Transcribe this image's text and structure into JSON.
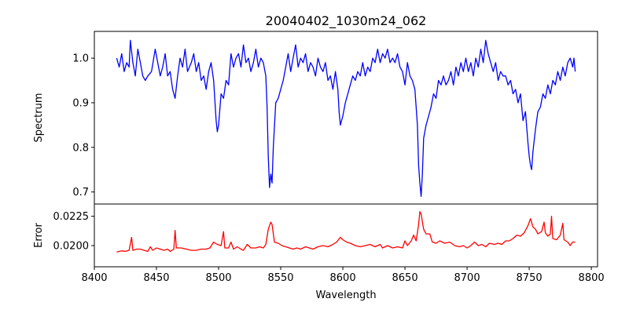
{
  "chart_data": [
    {
      "type": "line",
      "title": "20040402_1030m24_062",
      "xlabel": "",
      "ylabel": "Spectrum",
      "xlim": [
        8400,
        8805
      ],
      "ylim": [
        0.673,
        1.06
      ],
      "yticks": [
        0.7,
        0.8,
        0.9,
        1.0
      ],
      "ytick_labels": [
        "0.7",
        "0.8",
        "0.9",
        "1.0"
      ],
      "grid": false,
      "series": [
        {
          "name": "Spectrum",
          "color": "#0000ff",
          "x": [
            8418,
            8420,
            8422,
            8424,
            8426,
            8428,
            8429,
            8431,
            8433,
            8435,
            8437,
            8439,
            8441,
            8443,
            8446,
            8449,
            8451,
            8453,
            8455,
            8457,
            8459,
            8461,
            8463,
            8465,
            8467,
            8469,
            8471,
            8473,
            8475,
            8478,
            8480,
            8482,
            8484,
            8486,
            8488,
            8490,
            8492,
            8494,
            8496,
            8498,
            8499,
            8500,
            8502,
            8504,
            8506,
            8508,
            8510,
            8512,
            8514,
            8516,
            8518,
            8520,
            8522,
            8524,
            8526,
            8528,
            8530,
            8532,
            8534,
            8536,
            8538,
            8539,
            8540,
            8541,
            8542,
            8543,
            8544,
            8546,
            8548,
            8550,
            8552,
            8554,
            8556,
            8558,
            8560,
            8562,
            8564,
            8566,
            8568,
            8570,
            8572,
            8574,
            8576,
            8578,
            8580,
            8582,
            8584,
            8586,
            8588,
            8590,
            8592,
            8594,
            8596,
            8597,
            8598,
            8600,
            8602,
            8604,
            8606,
            8608,
            8610,
            8612,
            8614,
            8616,
            8618,
            8620,
            8622,
            8624,
            8626,
            8628,
            8630,
            8632,
            8634,
            8636,
            8638,
            8640,
            8642,
            8644,
            8646,
            8648,
            8650,
            8652,
            8654,
            8656,
            8658,
            8660,
            8661,
            8662,
            8663,
            8664,
            8665,
            8667,
            8669,
            8671,
            8673,
            8675,
            8677,
            8679,
            8681,
            8683,
            8685,
            8687,
            8689,
            8691,
            8693,
            8695,
            8697,
            8699,
            8701,
            8703,
            8705,
            8707,
            8709,
            8711,
            8713,
            8715,
            8717,
            8719,
            8721,
            8723,
            8725,
            8727,
            8729,
            8731,
            8733,
            8735,
            8737,
            8739,
            8741,
            8743,
            8745,
            8747,
            8749,
            8750,
            8751,
            8752,
            8753,
            8755,
            8757,
            8759,
            8761,
            8763,
            8765,
            8767,
            8769,
            8771,
            8773,
            8775,
            8777,
            8779,
            8781,
            8783,
            8785,
            8786,
            8787
          ],
          "y": [
            1.0,
            0.98,
            1.01,
            0.97,
            0.99,
            0.98,
            1.04,
            0.99,
            0.96,
            1.02,
            0.99,
            0.96,
            0.95,
            0.96,
            0.97,
            1.02,
            0.99,
            0.96,
            0.98,
            1.01,
            0.96,
            0.97,
            0.93,
            0.91,
            0.96,
            1.0,
            0.98,
            1.02,
            0.97,
            0.99,
            1.01,
            0.97,
            0.99,
            0.95,
            0.96,
            0.93,
            0.97,
            0.99,
            0.95,
            0.86,
            0.835,
            0.85,
            0.92,
            0.91,
            0.95,
            0.94,
            1.01,
            0.98,
            1.0,
            1.01,
            0.98,
            1.03,
            0.99,
            1.0,
            0.97,
            0.99,
            1.02,
            0.98,
            1.0,
            0.99,
            0.96,
            0.89,
            0.78,
            0.71,
            0.74,
            0.72,
            0.8,
            0.9,
            0.91,
            0.93,
            0.95,
            0.98,
            1.01,
            0.97,
            1.0,
            1.03,
            0.98,
            1.0,
            0.99,
            1.01,
            0.97,
            0.99,
            0.98,
            0.96,
            1.0,
            0.98,
            0.97,
            0.99,
            0.95,
            0.96,
            0.93,
            0.97,
            0.93,
            0.88,
            0.85,
            0.87,
            0.9,
            0.92,
            0.94,
            0.96,
            0.95,
            0.97,
            0.96,
            0.99,
            0.96,
            0.98,
            0.97,
            1.0,
            0.99,
            1.02,
            0.99,
            1.01,
            1.0,
            1.02,
            0.99,
            1.0,
            0.99,
            1.01,
            0.98,
            0.97,
            0.94,
            0.99,
            0.96,
            0.95,
            0.93,
            0.85,
            0.76,
            0.72,
            0.69,
            0.74,
            0.82,
            0.85,
            0.87,
            0.89,
            0.92,
            0.91,
            0.95,
            0.94,
            0.96,
            0.94,
            0.95,
            0.97,
            0.94,
            0.98,
            0.96,
            0.99,
            0.97,
            1.0,
            0.97,
            0.99,
            0.96,
            1.0,
            0.98,
            1.02,
            0.99,
            1.04,
            1.01,
            0.99,
            0.97,
            0.99,
            0.95,
            0.97,
            0.96,
            0.96,
            0.94,
            0.95,
            0.92,
            0.93,
            0.9,
            0.92,
            0.86,
            0.88,
            0.81,
            0.78,
            0.76,
            0.75,
            0.79,
            0.84,
            0.88,
            0.89,
            0.92,
            0.91,
            0.94,
            0.92,
            0.95,
            0.94,
            0.97,
            0.95,
            0.98,
            0.96,
            0.99,
            1.0,
            0.98,
            1.0,
            0.97
          ]
        }
      ]
    },
    {
      "type": "line",
      "title": "",
      "xlabel": "Wavelength",
      "ylabel": "Error",
      "xlim": [
        8400,
        8805
      ],
      "ylim": [
        0.01819,
        0.02355
      ],
      "xticks": [
        8400,
        8450,
        8500,
        8550,
        8600,
        8650,
        8700,
        8750,
        8800
      ],
      "xtick_labels": [
        "8400",
        "8450",
        "8500",
        "8550",
        "8600",
        "8650",
        "8700",
        "8750",
        "8800"
      ],
      "yticks": [
        0.02,
        0.0225
      ],
      "ytick_labels": [
        "0.0200",
        "0.0225"
      ],
      "grid": false,
      "series": [
        {
          "name": "Error",
          "color": "#ff0000",
          "x": [
            8418,
            8420,
            8422,
            8425,
            8428,
            8430,
            8431,
            8434,
            8437,
            8440,
            8443,
            8445,
            8447,
            8450,
            8453,
            8456,
            8459,
            8461,
            8464,
            8465,
            8466,
            8470,
            8474,
            8478,
            8482,
            8486,
            8490,
            8493,
            8496,
            8499,
            8502,
            8504,
            8505,
            8508,
            8510,
            8512,
            8515,
            8518,
            8520,
            8523,
            8526,
            8530,
            8533,
            8536,
            8538,
            8540,
            8542,
            8543,
            8545,
            8548,
            8551,
            8554,
            8557,
            8560,
            8563,
            8566,
            8570,
            8573,
            8576,
            8580,
            8584,
            8588,
            8592,
            8595,
            8598,
            8600,
            8603,
            8606,
            8610,
            8614,
            8618,
            8622,
            8626,
            8630,
            8632,
            8636,
            8640,
            8644,
            8648,
            8650,
            8652,
            8655,
            8657,
            8659,
            8661,
            8662,
            8663,
            8665,
            8667,
            8670,
            8672,
            8675,
            8678,
            8682,
            8686,
            8690,
            8694,
            8697,
            8700,
            8703,
            8706,
            8709,
            8712,
            8715,
            8718,
            8722,
            8725,
            8728,
            8731,
            8734,
            8737,
            8740,
            8743,
            8746,
            8749,
            8751,
            8753,
            8755,
            8757,
            8760,
            8762,
            8763,
            8765,
            8767,
            8768,
            8769,
            8772,
            8775,
            8777,
            8778,
            8781,
            8783,
            8785,
            8787
          ],
          "y": [
            0.01945,
            0.0195,
            0.01955,
            0.0195,
            0.0196,
            0.0207,
            0.0196,
            0.0197,
            0.0197,
            0.0196,
            0.0195,
            0.0199,
            0.0196,
            0.0198,
            0.0197,
            0.0196,
            0.0197,
            0.0195,
            0.0197,
            0.0213,
            0.0198,
            0.0198,
            0.0197,
            0.0196,
            0.0196,
            0.0197,
            0.0197,
            0.0198,
            0.0203,
            0.0201,
            0.02,
            0.0212,
            0.0198,
            0.0198,
            0.0203,
            0.0197,
            0.0199,
            0.0197,
            0.0196,
            0.0201,
            0.0198,
            0.0198,
            0.0199,
            0.0198,
            0.0201,
            0.0214,
            0.022,
            0.0218,
            0.0203,
            0.0202,
            0.02,
            0.0199,
            0.0198,
            0.0197,
            0.0198,
            0.0197,
            0.0199,
            0.0198,
            0.0197,
            0.0199,
            0.02,
            0.0199,
            0.0201,
            0.0203,
            0.0207,
            0.0205,
            0.0203,
            0.0202,
            0.02,
            0.0199,
            0.02,
            0.0201,
            0.0199,
            0.0201,
            0.0198,
            0.02,
            0.0198,
            0.0199,
            0.0198,
            0.0204,
            0.02,
            0.0204,
            0.0209,
            0.0204,
            0.0218,
            0.0229,
            0.0227,
            0.0214,
            0.021,
            0.021,
            0.0203,
            0.0202,
            0.0204,
            0.0202,
            0.0203,
            0.02,
            0.0199,
            0.02,
            0.0198,
            0.02,
            0.0203,
            0.02,
            0.0201,
            0.0199,
            0.0202,
            0.0201,
            0.0202,
            0.0201,
            0.0204,
            0.0204,
            0.0206,
            0.0209,
            0.0208,
            0.0211,
            0.0217,
            0.0223,
            0.0216,
            0.0214,
            0.021,
            0.0212,
            0.022,
            0.0211,
            0.0208,
            0.021,
            0.0225,
            0.0206,
            0.0205,
            0.0209,
            0.0219,
            0.0205,
            0.0203,
            0.02,
            0.0203,
            0.0203
          ]
        }
      ]
    }
  ]
}
